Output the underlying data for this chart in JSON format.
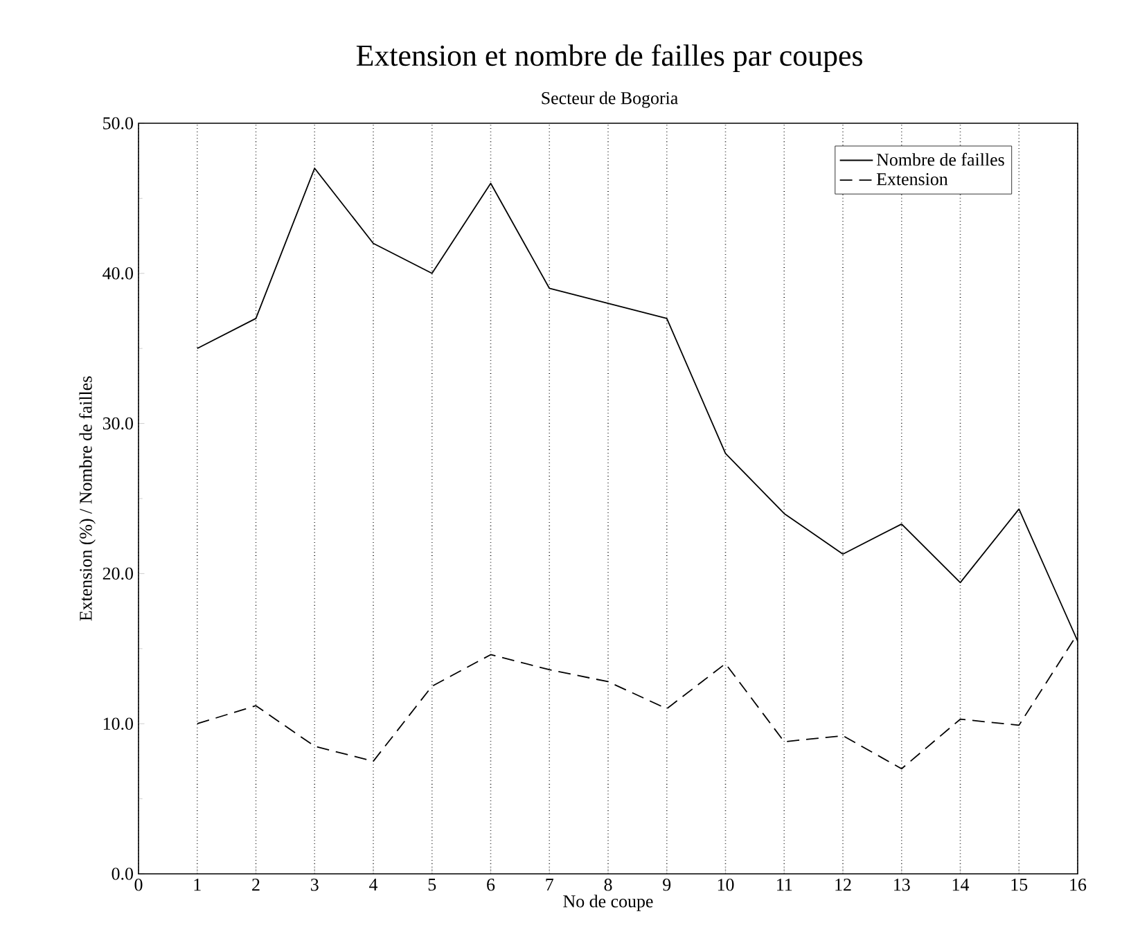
{
  "chart_data": {
    "type": "line",
    "title": "Extension et nombre de failles par coupes",
    "subtitle": "Secteur de Bogoria",
    "xlabel": "No de coupe",
    "ylabel": "Extension (%) / Nombre de failles",
    "x": [
      1,
      2,
      3,
      4,
      5,
      6,
      7,
      8,
      9,
      10,
      11,
      12,
      13,
      14,
      15,
      16
    ],
    "series": [
      {
        "name": "Nombre de failles",
        "color": "#000000",
        "line_style": "solid",
        "values": [
          35,
          37,
          47,
          42,
          40,
          46,
          39,
          38,
          37,
          28,
          24,
          21.3,
          23.3,
          19.4,
          24.3,
          15.5
        ]
      },
      {
        "name": "Extension",
        "color": "#000000",
        "line_style": "dashed",
        "values": [
          10,
          11.2,
          8.5,
          7.5,
          12.5,
          14.6,
          13.6,
          12.8,
          11,
          14,
          8.8,
          9.2,
          7,
          10.3,
          9.9,
          16
        ]
      }
    ],
    "xlim": [
      0,
      16
    ],
    "xticks": [
      0,
      1,
      2,
      3,
      4,
      5,
      6,
      7,
      8,
      9,
      10,
      11,
      12,
      13,
      14,
      15,
      16
    ],
    "ylim": [
      0,
      50
    ],
    "yticks": [
      {
        "value": 0,
        "label": "0.0"
      },
      {
        "value": 10,
        "label": "10.0"
      },
      {
        "value": 20,
        "label": "20.0"
      },
      {
        "value": 30,
        "label": "30.0"
      },
      {
        "value": 40,
        "label": "40.0"
      },
      {
        "value": 50,
        "label": "50.0"
      }
    ],
    "grid": "x",
    "legend": "top right",
    "marker": "none"
  }
}
